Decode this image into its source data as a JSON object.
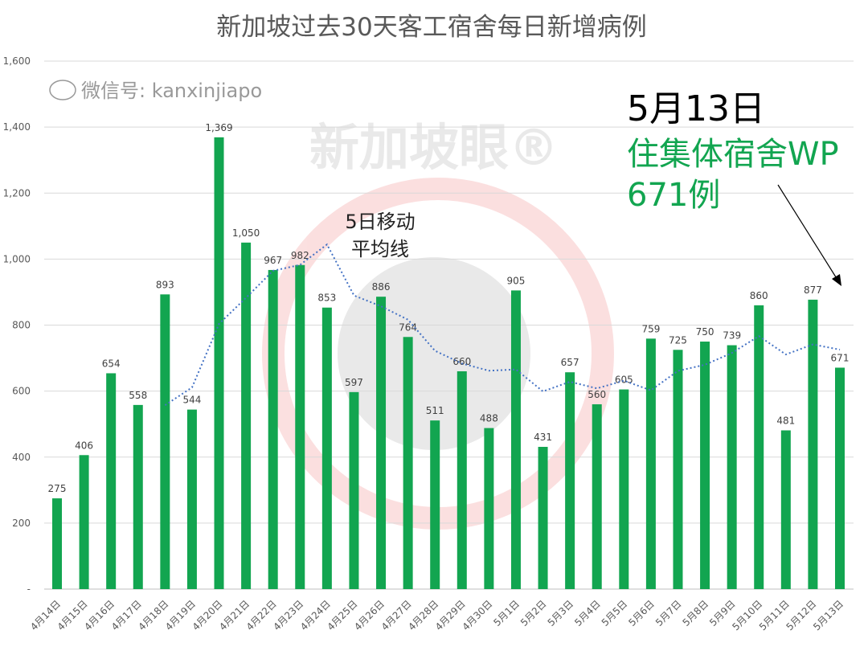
{
  "chart_data": {
    "type": "bar",
    "title": "新加坡过去30天客工宿舍每日新增病例",
    "categories": [
      "4月14日",
      "4月15日",
      "4月16日",
      "4月17日",
      "4月18日",
      "4月19日",
      "4月20日",
      "4月21日",
      "4月22日",
      "4月23日",
      "4月24日",
      "4月25日",
      "4月26日",
      "4月27日",
      "4月28日",
      "4月29日",
      "4月30日",
      "5月1日",
      "5月2日",
      "5月3日",
      "5月4日",
      "5月5日",
      "5月6日",
      "5月7日",
      "5月8日",
      "5月9日",
      "5月10日",
      "5月11日",
      "5月12日",
      "5月13日"
    ],
    "series": [
      {
        "name": "每日新增病例",
        "type": "bar",
        "color": "#12a550",
        "values": [
          275,
          406,
          654,
          558,
          893,
          544,
          1369,
          1050,
          967,
          982,
          853,
          597,
          886,
          764,
          511,
          660,
          488,
          905,
          431,
          657,
          560,
          605,
          759,
          725,
          750,
          739,
          860,
          481,
          877,
          671
        ]
      },
      {
        "name": "5日移动平均线",
        "type": "line",
        "style": "dotted",
        "color": "#4472c4",
        "values": [
          null,
          null,
          null,
          null,
          557.2,
          611,
          803.6,
          882.8,
          964.6,
          982.4,
          1044.2,
          889.8,
          857,
          816.4,
          722.2,
          683.6,
          661.8,
          665.6,
          599,
          628.2,
          608.2,
          631.6,
          602.4,
          661.2,
          679.8,
          715.6,
          766.6,
          711,
          741.4,
          725.6
        ]
      }
    ],
    "data_labels": [
      "275",
      "406",
      "654",
      "558",
      "893",
      "544",
      "1,369",
      "1,050",
      "967",
      "982",
      "853",
      "597",
      "886",
      "764",
      "511",
      "660",
      "488",
      "905",
      "431",
      "657",
      "560",
      "605",
      "759",
      "725",
      "750",
      "739",
      "860",
      "481",
      "877",
      "671"
    ],
    "ylim": [
      0,
      1600
    ],
    "yticks": [
      0,
      200,
      400,
      600,
      800,
      1000,
      1200,
      1400,
      1600
    ],
    "ytick_labels": [
      "-",
      "200",
      "400",
      "600",
      "800",
      "1,000",
      "1,200",
      "1,400",
      "1,600"
    ],
    "grid": true,
    "annotations": {
      "ma_label_line1": "5日移动",
      "ma_label_line2": "平均线",
      "date": "5月13日",
      "line2": "住集体宿舍WP",
      "line3": "671例"
    },
    "watermarks": {
      "logo": "新加坡眼®",
      "wechat": "微信号: kanxinjiapo"
    }
  }
}
